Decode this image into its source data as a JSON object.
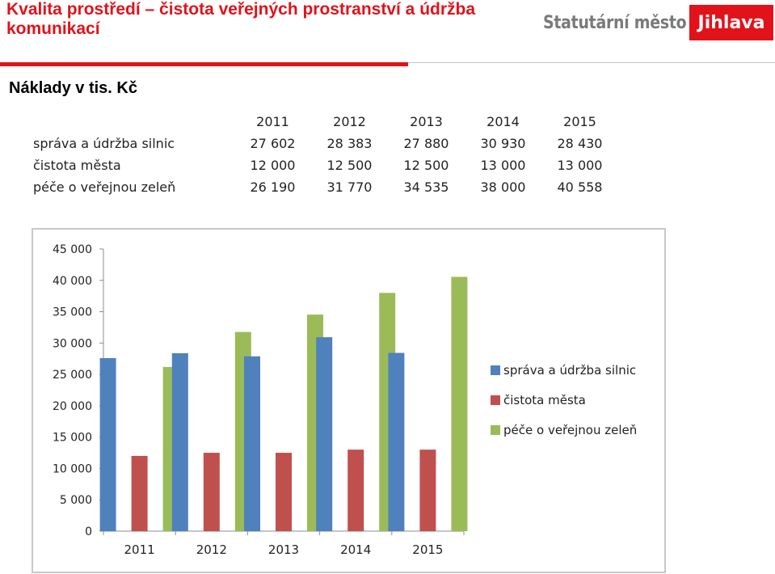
{
  "header": {
    "title": "Kvalita prostředí – čistota veřejných prostranství a údržba komunikací",
    "brand_prefix": "Statutární město",
    "brand_name": "Jihlava"
  },
  "subtitle": "Náklady v tis. Kč",
  "table": {
    "columns": [
      "2011",
      "2012",
      "2013",
      "2014",
      "2015"
    ],
    "rows": [
      {
        "label": "správa a údržba silnic",
        "values": [
          "27 602",
          "28 383",
          "27 880",
          "30 930",
          "28 430"
        ]
      },
      {
        "label": "čistota města",
        "values": [
          "12 000",
          "12 500",
          "12 500",
          "13 000",
          "13 000"
        ]
      },
      {
        "label": "péče o veřejnou zeleň",
        "values": [
          "26 190",
          "31 770",
          "34 535",
          "38 000",
          "40 558"
        ]
      }
    ]
  },
  "colors": {
    "accent": "#e2121a",
    "series": [
      "#4f81bd",
      "#c0504d",
      "#9bbb59"
    ]
  },
  "chart_data": {
    "type": "bar",
    "categories": [
      "2011",
      "2012",
      "2013",
      "2014",
      "2015"
    ],
    "series": [
      {
        "name": "správa a údržba silnic",
        "values": [
          27602,
          28383,
          27880,
          30930,
          28430
        ]
      },
      {
        "name": "čistota města",
        "values": [
          12000,
          12500,
          12500,
          13000,
          13000
        ]
      },
      {
        "name": "péče o veřejnou zeleň",
        "values": [
          26190,
          31770,
          34535,
          38000,
          40558
        ]
      }
    ],
    "ylim": [
      0,
      45000
    ],
    "ytick_labels": [
      "0",
      "5 000",
      "10 000",
      "15 000",
      "20 000",
      "25 000",
      "30 000",
      "35 000",
      "40 000",
      "45 000"
    ],
    "grid": false,
    "legend_position": "right"
  }
}
